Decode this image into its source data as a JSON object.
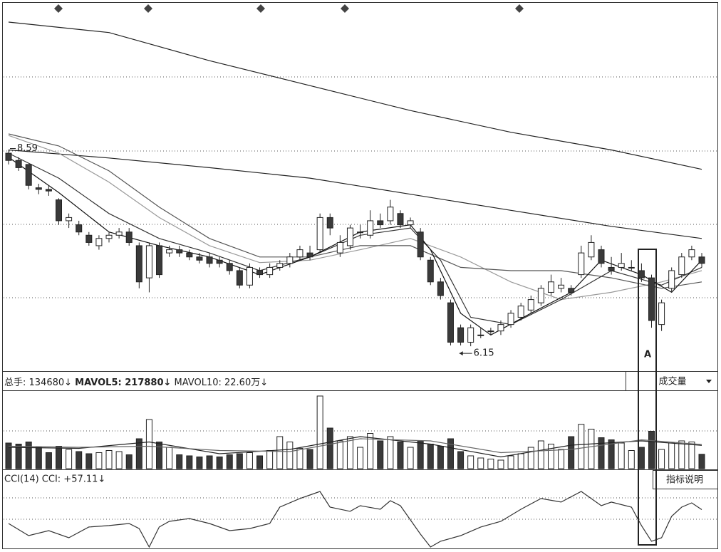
{
  "chart_data": [
    {
      "type": "candlestick",
      "ylim": [
        5.85,
        10.41
      ],
      "candles": {
        "open": [
          8.55,
          8.46,
          8.41,
          8.12,
          8.1,
          7.97,
          7.71,
          7.66,
          7.53,
          7.4,
          7.49,
          7.53,
          7.57,
          7.4,
          7.0,
          7.4,
          7.31,
          7.35,
          7.31,
          7.26,
          7.26,
          7.22,
          7.18,
          7.09,
          6.91,
          7.09,
          7.04,
          7.13,
          7.18,
          7.26,
          7.31,
          7.35,
          7.75,
          7.31,
          7.4,
          7.57,
          7.53,
          7.71,
          7.71,
          7.8,
          7.66,
          7.57,
          7.22,
          6.95,
          6.69,
          6.38,
          6.2,
          6.29,
          6.34,
          6.34,
          6.42,
          6.51,
          6.6,
          6.69,
          6.82,
          6.87,
          6.87,
          7.04,
          7.26,
          7.35,
          7.13,
          7.13,
          7.13,
          7.09,
          7.0,
          6.42,
          6.87,
          7.04,
          7.26,
          7.26
        ],
        "close": [
          8.46,
          8.37,
          8.15,
          8.1,
          8.08,
          7.71,
          7.75,
          7.57,
          7.44,
          7.49,
          7.53,
          7.57,
          7.44,
          6.95,
          7.4,
          7.04,
          7.35,
          7.31,
          7.26,
          7.22,
          7.18,
          7.18,
          7.09,
          6.91,
          7.13,
          7.04,
          7.13,
          7.18,
          7.26,
          7.35,
          7.26,
          7.75,
          7.62,
          7.44,
          7.62,
          7.57,
          7.71,
          7.66,
          7.88,
          7.66,
          7.71,
          7.26,
          6.95,
          6.78,
          6.2,
          6.2,
          6.38,
          6.29,
          6.34,
          6.42,
          6.56,
          6.65,
          6.73,
          6.87,
          6.95,
          6.91,
          6.82,
          7.31,
          7.44,
          7.18,
          7.09,
          7.18,
          7.13,
          7.0,
          6.47,
          6.69,
          7.09,
          7.26,
          7.35,
          7.18
        ],
        "high": [
          8.59,
          8.5,
          8.41,
          8.17,
          8.15,
          7.99,
          7.8,
          7.71,
          7.57,
          7.53,
          7.57,
          7.62,
          7.62,
          7.44,
          7.44,
          7.44,
          7.4,
          7.4,
          7.35,
          7.31,
          7.31,
          7.26,
          7.22,
          7.13,
          7.18,
          7.13,
          7.18,
          7.22,
          7.31,
          7.4,
          7.4,
          7.8,
          7.8,
          7.53,
          7.66,
          7.66,
          7.84,
          7.8,
          7.97,
          7.84,
          7.75,
          7.62,
          7.26,
          7.0,
          6.73,
          6.42,
          6.42,
          6.38,
          6.38,
          6.47,
          6.6,
          6.69,
          6.78,
          6.91,
          7.04,
          7.0,
          6.91,
          7.4,
          7.53,
          7.4,
          7.26,
          7.31,
          7.22,
          7.18,
          7.04,
          6.73,
          7.13,
          7.31,
          7.4,
          7.31
        ],
        "low": [
          8.41,
          8.33,
          8.1,
          8.04,
          8.02,
          7.66,
          7.62,
          7.53,
          7.4,
          7.35,
          7.44,
          7.49,
          7.4,
          6.87,
          6.82,
          7.0,
          7.26,
          7.26,
          7.22,
          7.18,
          7.13,
          7.13,
          7.04,
          6.87,
          6.87,
          7.0,
          7.0,
          7.09,
          7.13,
          7.22,
          7.22,
          7.31,
          7.53,
          7.26,
          7.35,
          7.49,
          7.49,
          7.62,
          7.66,
          7.62,
          7.62,
          7.22,
          6.91,
          6.73,
          6.16,
          6.16,
          6.15,
          6.25,
          6.29,
          6.29,
          6.38,
          6.47,
          6.56,
          6.65,
          6.78,
          6.82,
          6.78,
          7.0,
          7.22,
          7.13,
          7.04,
          7.09,
          7.09,
          6.95,
          6.38,
          6.34,
          6.82,
          7.0,
          7.22,
          7.13
        ]
      },
      "lines": [
        {
          "color": "#222",
          "x": [
            0,
            10,
            20,
            30,
            40,
            50,
            60,
            69
          ],
          "values": [
            10.18,
            10.05,
            9.7,
            9.39,
            9.08,
            8.81,
            8.59,
            8.35
          ]
        },
        {
          "color": "#222",
          "x": [
            0,
            10,
            20,
            30,
            40,
            50,
            60,
            69
          ],
          "values": [
            8.59,
            8.49,
            8.37,
            8.24,
            8.04,
            7.84,
            7.64,
            7.49
          ]
        },
        {
          "color": "#999",
          "x": [
            0,
            5,
            10,
            15,
            20,
            25,
            30,
            35,
            40,
            45,
            50,
            55,
            60,
            65,
            69
          ],
          "values": [
            8.77,
            8.55,
            8.19,
            7.75,
            7.4,
            7.19,
            7.22,
            7.35,
            7.49,
            7.26,
            6.95,
            6.73,
            6.82,
            6.95,
            7.09
          ]
        },
        {
          "color": "#555",
          "x": [
            0,
            5,
            10,
            15,
            20,
            25,
            30,
            35,
            40,
            45,
            50,
            55,
            60,
            65,
            69
          ],
          "values": [
            8.79,
            8.64,
            8.33,
            7.88,
            7.49,
            7.26,
            7.26,
            7.4,
            7.4,
            7.13,
            7.09,
            7.09,
            7.0,
            6.87,
            6.95
          ]
        },
        {
          "color": "#333",
          "x": [
            0,
            5,
            10,
            15,
            20,
            25,
            30,
            35,
            40,
            43,
            46,
            50,
            55,
            60,
            65,
            69
          ],
          "values": [
            8.55,
            8.24,
            7.8,
            7.49,
            7.31,
            7.09,
            7.26,
            7.53,
            7.62,
            7.22,
            6.51,
            6.42,
            6.73,
            7.09,
            6.91,
            7.13
          ]
        },
        {
          "color": "#111",
          "x": [
            0,
            5,
            10,
            15,
            20,
            25,
            30,
            35,
            40,
            42,
            45,
            48,
            52,
            56,
            59,
            63,
            66,
            69
          ],
          "values": [
            8.5,
            8.06,
            7.57,
            7.4,
            7.26,
            7.04,
            7.26,
            7.57,
            7.66,
            7.35,
            6.56,
            6.29,
            6.56,
            6.82,
            7.22,
            7.04,
            6.82,
            7.22
          ]
        }
      ],
      "high_label": "8.59",
      "low_label": "6.15",
      "marker_label": "A"
    },
    {
      "type": "bar",
      "legend_texts": [
        "总手: 134680↓",
        "MAVOL5: 217880↓",
        "MAVOL10: 22.60万↓"
      ],
      "indicator_select": "成交量",
      "ylim": [
        0,
        720000
      ],
      "values": [
        240000,
        230000,
        250000,
        200000,
        150000,
        210000,
        180000,
        160000,
        140000,
        150000,
        170000,
        160000,
        130000,
        280000,
        460000,
        250000,
        200000,
        130000,
        120000,
        110000,
        120000,
        110000,
        130000,
        140000,
        150000,
        120000,
        170000,
        300000,
        250000,
        190000,
        180000,
        680000,
        380000,
        260000,
        300000,
        200000,
        330000,
        260000,
        300000,
        250000,
        200000,
        260000,
        230000,
        210000,
        280000,
        160000,
        120000,
        100000,
        90000,
        80000,
        120000,
        140000,
        200000,
        260000,
        230000,
        180000,
        300000,
        415000,
        370000,
        290000,
        270000,
        240000,
        170000,
        200000,
        350000,
        180000,
        240000,
        260000,
        250000,
        134680
      ],
      "lines": [
        {
          "color": "#222",
          "x": [
            0,
            7,
            14,
            21,
            28,
            35,
            42,
            49,
            56,
            63,
            69
          ],
          "values": [
            200000,
            190000,
            250000,
            140000,
            180000,
            300000,
            230000,
            110000,
            220000,
            260000,
            217880
          ]
        },
        {
          "color": "#666",
          "x": [
            0,
            7,
            14,
            21,
            28,
            35,
            42,
            49,
            56,
            63,
            69
          ],
          "values": [
            210000,
            200000,
            210000,
            170000,
            160000,
            280000,
            260000,
            150000,
            180000,
            270000,
            226000
          ]
        }
      ]
    },
    {
      "type": "line",
      "title": "CCI(14) CCI: +57.11↓",
      "help_button": "指标说明",
      "ylim": [
        -300,
        250
      ],
      "color": "#333",
      "x": [
        0,
        2,
        4,
        6,
        8,
        10,
        12,
        13,
        14,
        15,
        16,
        18,
        20,
        22,
        24,
        26,
        27,
        29,
        30,
        31,
        32,
        34,
        35,
        37,
        38,
        39,
        41,
        42,
        43,
        45,
        47,
        49,
        51,
        53,
        55,
        57,
        59,
        60,
        62,
        63,
        64,
        65,
        66,
        67,
        68,
        69
      ],
      "values": [
        -71,
        -182,
        -136,
        -202,
        -103,
        -90,
        -71,
        -117,
        -287,
        -103,
        -51,
        -25,
        -71,
        -136,
        -117,
        -71,
        80,
        159,
        191,
        224,
        80,
        41,
        93,
        60,
        139,
        93,
        -169,
        -287,
        -234,
        -182,
        -103,
        -51,
        60,
        159,
        126,
        224,
        93,
        126,
        80,
        -90,
        -234,
        -202,
        -5,
        80,
        119,
        57.11
      ]
    }
  ]
}
